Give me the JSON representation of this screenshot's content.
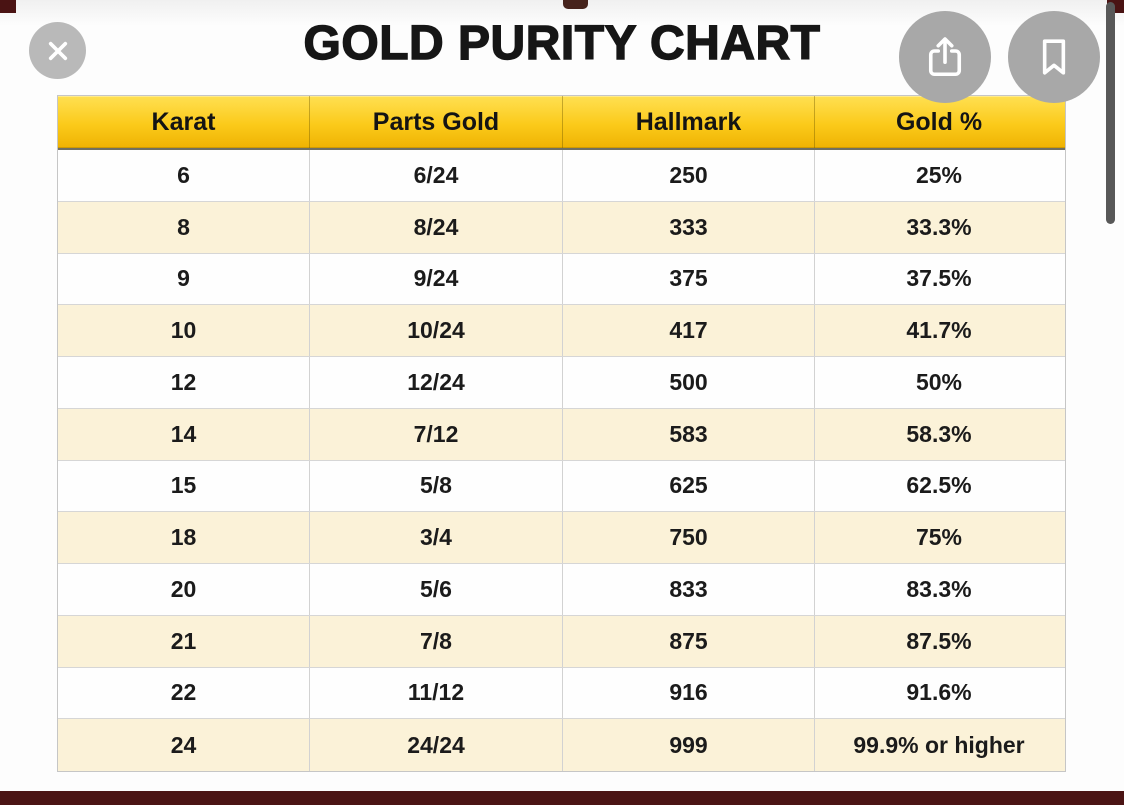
{
  "title": "GOLD PURITY CHART",
  "viewer": {
    "close_icon": "close-x",
    "share_icon": "share-up-arrow",
    "bookmark_icon": "bookmark-outline",
    "scrollbar": "vertical-thumb-top-right"
  },
  "table": {
    "columns": [
      "Karat",
      "Parts Gold",
      "Hallmark",
      "Gold %"
    ],
    "rows": [
      [
        "6",
        "6/24",
        "250",
        "25%"
      ],
      [
        "8",
        "8/24",
        "333",
        "33.3%"
      ],
      [
        "9",
        "9/24",
        "375",
        "37.5%"
      ],
      [
        "10",
        "10/24",
        "417",
        "41.7%"
      ],
      [
        "12",
        "12/24",
        "500",
        "50%"
      ],
      [
        "14",
        "7/12",
        "583",
        "58.3%"
      ],
      [
        "15",
        "5/8",
        "625",
        "62.5%"
      ],
      [
        "18",
        "3/4",
        "750",
        "75%"
      ],
      [
        "20",
        "5/6",
        "833",
        "83.3%"
      ],
      [
        "21",
        "7/8",
        "875",
        "87.5%"
      ],
      [
        "22",
        "11/12",
        "916",
        "91.6%"
      ],
      [
        "24",
        "24/24",
        "999",
        "99.9% or higher"
      ]
    ]
  },
  "colors": {
    "header_gold_top": "#ffe052",
    "header_gold_bottom": "#efb202",
    "row_alt_cream": "#fbf2d8",
    "edge_dark_red": "#4b1414",
    "button_gray": "#a8a8a8",
    "scrollbar_gray": "#585858"
  }
}
